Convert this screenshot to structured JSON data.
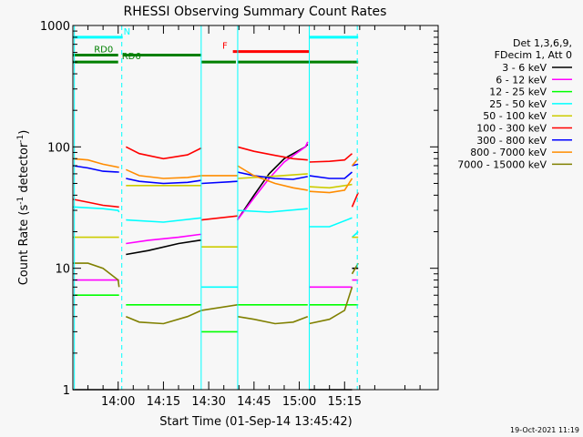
{
  "chart_data": {
    "type": "line",
    "title": "RHESSI Observing Summary Count Rates",
    "xlabel": "Start Time (01-Sep-14 13:45:42)",
    "ylabel_parts": {
      "prefix": "Count Rate (s",
      "sup": "-1",
      "suffix": " detector",
      "sup2": "-1",
      "end": ")"
    },
    "yscale": "log",
    "ylim": [
      1,
      1000
    ],
    "xlim_min": [
      -15,
      106
    ],
    "y_ticks": [
      {
        "v": 1,
        "label": "1"
      },
      {
        "v": 10,
        "label": "10"
      },
      {
        "v": 100,
        "label": "100"
      },
      {
        "v": 1000,
        "label": "1000"
      }
    ],
    "x_ticks": [
      {
        "t": 0,
        "label": "14:00"
      },
      {
        "t": 15,
        "label": "14:15"
      },
      {
        "t": 30,
        "label": "14:30"
      },
      {
        "t": 45,
        "label": "14:45"
      },
      {
        "t": 60,
        "label": "15:00"
      },
      {
        "t": 75,
        "label": "15:15"
      }
    ],
    "legend_header": [
      "Det 1,3,6,9,",
      "FDecim 1, Att 0"
    ],
    "series": [
      {
        "name": "3 - 6 keV",
        "color": "#000000",
        "segments": [
          {
            "x": [
              -15,
              -10,
              -5,
              0,
              0.3
            ],
            "y": [
              1.0,
              1.0,
              1.0,
              1.0,
              1.0
            ]
          },
          {
            "x": [
              2.6,
              10,
              20,
              27,
              27.6
            ],
            "y": [
              13,
              14,
              16,
              17,
              17
            ]
          },
          {
            "x": [
              39.5,
              45,
              50,
              55,
              62,
              62.8
            ],
            "y": [
              25,
              40,
              60,
              80,
              100,
              105
            ]
          },
          {
            "x": [
              63.2,
              70,
              75,
              77.5
            ],
            "y": [
              1.0,
              1.0,
              1.0,
              1.0
            ]
          },
          {
            "x": [
              77.5,
              79.5
            ],
            "y": [
              10,
              10
            ]
          }
        ]
      },
      {
        "name": "6 - 12 keV",
        "color": "#ff00ff",
        "segments": [
          {
            "x": [
              -15,
              -5,
              0,
              0.3
            ],
            "y": [
              8,
              8,
              8,
              8
            ]
          },
          {
            "x": [
              2.6,
              10,
              20,
              27,
              27.6
            ],
            "y": [
              16,
              17,
              18,
              19,
              19
            ]
          },
          {
            "x": [
              39.5,
              45,
              50,
              55,
              62,
              62.8
            ],
            "y": [
              25,
              38,
              55,
              75,
              100,
              110
            ]
          },
          {
            "x": [
              63.2,
              70,
              75,
              77.5
            ],
            "y": [
              7,
              7,
              7,
              7
            ]
          },
          {
            "x": [
              77.5,
              79.5
            ],
            "y": [
              8,
              8
            ]
          }
        ]
      },
      {
        "name": "12 - 25 keV",
        "color": "#00ff00",
        "segments": [
          {
            "x": [
              -15,
              -5,
              0,
              0.3
            ],
            "y": [
              6,
              6,
              6,
              6
            ]
          },
          {
            "x": [
              2.6,
              15,
              27.6
            ],
            "y": [
              5,
              5,
              5
            ]
          },
          {
            "x": [
              27.6,
              39.5
            ],
            "y": [
              3,
              3
            ]
          },
          {
            "x": [
              39.5,
              50,
              62.8
            ],
            "y": [
              5,
              5,
              5
            ]
          },
          {
            "x": [
              63.2,
              70,
              77.5
            ],
            "y": [
              5,
              5,
              5
            ]
          },
          {
            "x": [
              77.5,
              79.5
            ],
            "y": [
              5,
              5
            ]
          }
        ]
      },
      {
        "name": "25 - 50 keV",
        "color": "#00ffff",
        "segments": [
          {
            "x": [
              -15,
              -5,
              0,
              0.3
            ],
            "y": [
              32,
              31,
              30,
              29
            ]
          },
          {
            "x": [
              2.6,
              15,
              27.6
            ],
            "y": [
              25,
              24,
              26
            ]
          },
          {
            "x": [
              27.6,
              39.5
            ],
            "y": [
              7,
              7
            ]
          },
          {
            "x": [
              39.5,
              50,
              62.8
            ],
            "y": [
              30,
              29,
              31
            ]
          },
          {
            "x": [
              63.2,
              70,
              77.5
            ],
            "y": [
              22,
              22,
              26
            ]
          },
          {
            "x": [
              77.5,
              79.5
            ],
            "y": [
              18,
              20
            ]
          }
        ]
      },
      {
        "name": "50 - 100 keV",
        "color": "#cccc00",
        "segments": [
          {
            "x": [
              -15,
              -5,
              0,
              0.3
            ],
            "y": [
              18,
              18,
              18,
              18
            ]
          },
          {
            "x": [
              2.6,
              15,
              27.6
            ],
            "y": [
              48,
              48,
              48
            ]
          },
          {
            "x": [
              27.6,
              39.5
            ],
            "y": [
              15,
              15
            ]
          },
          {
            "x": [
              39.5,
              50,
              62.8
            ],
            "y": [
              55,
              57,
              60
            ]
          },
          {
            "x": [
              63.2,
              70,
              77.5
            ],
            "y": [
              47,
              46,
              49
            ]
          },
          {
            "x": [
              77.5,
              79.5
            ],
            "y": [
              18,
              18
            ]
          }
        ]
      },
      {
        "name": "100 - 300 keV",
        "color": "#ff0000",
        "segments": [
          {
            "x": [
              -15,
              -10,
              -5,
              0,
              0.3
            ],
            "y": [
              37,
              35,
              33,
              32,
              32
            ]
          },
          {
            "x": [
              2.6,
              7,
              15,
              23,
              27.6
            ],
            "y": [
              100,
              88,
              80,
              86,
              98
            ]
          },
          {
            "x": [
              27.6,
              39.5
            ],
            "y": [
              25,
              27
            ]
          },
          {
            "x": [
              39.5,
              45,
              52,
              58,
              62.8
            ],
            "y": [
              100,
              92,
              85,
              80,
              78
            ]
          },
          {
            "x": [
              63.2,
              70,
              75,
              77.5
            ],
            "y": [
              75,
              76,
              78,
              88
            ]
          },
          {
            "x": [
              77.5,
              79.5
            ],
            "y": [
              32,
              42
            ]
          }
        ]
      },
      {
        "name": "300 - 800 keV",
        "color": "#0000ff",
        "segments": [
          {
            "x": [
              -15,
              -10,
              -5,
              0,
              0.3
            ],
            "y": [
              70,
              67,
              63,
              62,
              62
            ]
          },
          {
            "x": [
              2.6,
              7,
              15,
              23,
              27.6
            ],
            "y": [
              55,
              52,
              50,
              51,
              53
            ]
          },
          {
            "x": [
              27.6,
              39.5
            ],
            "y": [
              50,
              52
            ]
          },
          {
            "x": [
              39.5,
              45,
              52,
              58,
              62.8
            ],
            "y": [
              62,
              58,
              55,
              54,
              57
            ]
          },
          {
            "x": [
              63.2,
              70,
              75,
              77.5
            ],
            "y": [
              58,
              55,
              55,
              62
            ]
          },
          {
            "x": [
              77.5,
              79.5
            ],
            "y": [
              70,
              72
            ]
          }
        ]
      },
      {
        "name": "800 - 7000 keV",
        "color": "#ff8c00",
        "segments": [
          {
            "x": [
              -15,
              -10,
              -5,
              0,
              0.3
            ],
            "y": [
              80,
              78,
              72,
              68,
              68
            ]
          },
          {
            "x": [
              2.6,
              7,
              15,
              23,
              27.6
            ],
            "y": [
              65,
              58,
              55,
              56,
              58
            ]
          },
          {
            "x": [
              27.6,
              39.5
            ],
            "y": [
              58,
              58
            ]
          },
          {
            "x": [
              39.5,
              45,
              52,
              58,
              62.8
            ],
            "y": [
              70,
              58,
              50,
              46,
              44
            ]
          },
          {
            "x": [
              63.2,
              70,
              75,
              77.5
            ],
            "y": [
              43,
              42,
              44,
              55
            ]
          },
          {
            "x": [
              77.5,
              79.5
            ],
            "y": [
              70,
              80
            ]
          }
        ]
      },
      {
        "name": "7000 - 15000 keV",
        "color": "#808000",
        "segments": [
          {
            "x": [
              -15,
              -10,
              -5,
              0,
              0.3
            ],
            "y": [
              11,
              11,
              10,
              8,
              7
            ]
          },
          {
            "x": [
              2.6,
              7,
              15,
              23,
              27.6
            ],
            "y": [
              4,
              3.6,
              3.5,
              4,
              4.5
            ]
          },
          {
            "x": [
              27.6,
              39.5
            ],
            "y": [
              4.5,
              5
            ]
          },
          {
            "x": [
              39.5,
              45,
              52,
              58,
              62.8
            ],
            "y": [
              4,
              3.8,
              3.5,
              3.6,
              4
            ]
          },
          {
            "x": [
              63.2,
              70,
              75,
              77.5
            ],
            "y": [
              3.5,
              3.8,
              4.5,
              7
            ]
          },
          {
            "x": [
              77.5,
              79.5
            ],
            "y": [
              9,
              11
            ]
          }
        ]
      }
    ],
    "flag_bars": [
      {
        "label": "N",
        "color": "#00ffff",
        "y": 800,
        "ranges": [
          [
            -15,
            1.5
          ],
          [
            63.2,
            79.5
          ]
        ],
        "label_x": 1.8
      },
      {
        "label": "F",
        "color": "#ff0000",
        "y": 610,
        "ranges": [
          [
            38,
            63.2
          ]
        ],
        "label_x": 34.5
      },
      {
        "label": "RD0",
        "color": "#008000",
        "y": 570,
        "ranges": [
          [
            -15,
            0
          ],
          [
            1.5,
            27.6
          ]
        ],
        "label_x": -8
      },
      {
        "label": "RD6",
        "color": "#008000",
        "y": 500,
        "ranges": [
          [
            -15,
            0
          ],
          [
            27.6,
            39
          ],
          [
            39.5,
            77.5
          ],
          [
            77.5,
            79.5
          ]
        ],
        "label_x": 1.2
      }
    ],
    "v_lines": [
      {
        "t": -14.5,
        "color": "#00ffff",
        "dash": false
      },
      {
        "t": 1.2,
        "color": "#00ffff",
        "dash": true
      },
      {
        "t": 27.5,
        "color": "#00ffff",
        "dash": false
      },
      {
        "t": 39.6,
        "color": "#00ffff",
        "dash": false
      },
      {
        "t": 63.3,
        "color": "#00ffff",
        "dash": false
      },
      {
        "t": 79.2,
        "color": "#00ffff",
        "dash": true
      }
    ]
  },
  "timestamp": "19-Oct-2021 11:19"
}
